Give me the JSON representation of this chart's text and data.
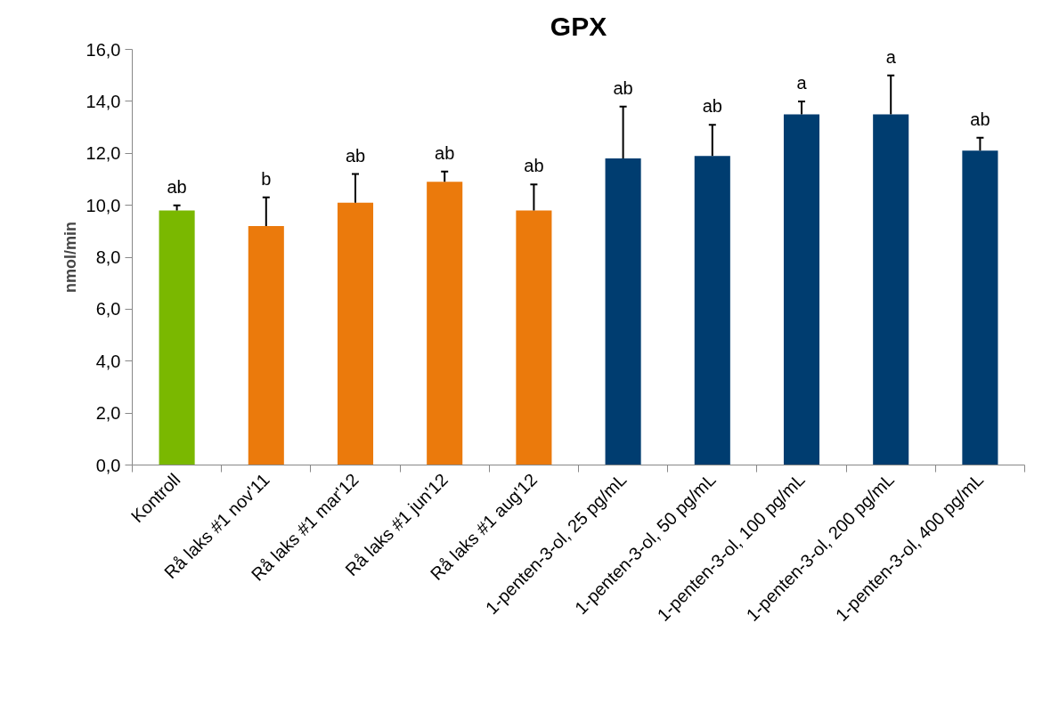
{
  "chart_data": {
    "type": "bar",
    "title": "GPX",
    "ylabel": "nmol/min",
    "categories": [
      "Kontroll",
      "Rå laks #1 nov'11",
      "Rå laks #1 mar'12",
      "Rå laks #1 jun'12",
      "Rå laks #1 aug'12",
      "1-penten-3-ol, 25 pg/mL",
      "1-penten-3-ol, 50 pg/mL",
      "1-penten-3-ol, 100 pg/mL",
      "1-penten-3-ol, 200 pg/mL",
      "1-penten-3-ol, 400 pg/mL"
    ],
    "values": [
      9.8,
      9.2,
      10.1,
      10.9,
      9.8,
      11.8,
      11.9,
      13.5,
      13.5,
      12.1
    ],
    "colors": [
      "#7ab800",
      "#eb7a0c",
      "#eb7a0c",
      "#eb7a0c",
      "#eb7a0c",
      "#003d70",
      "#003d70",
      "#003d70",
      "#003d70",
      "#003d70"
    ],
    "errors": [
      [
        9.8,
        10.0
      ],
      [
        9.2,
        10.3
      ],
      [
        10.1,
        11.2
      ],
      [
        10.9,
        11.3
      ],
      [
        9.8,
        10.8
      ],
      [
        11.8,
        13.8
      ],
      [
        11.9,
        13.1
      ],
      [
        13.5,
        14.0
      ],
      [
        13.5,
        15.0
      ],
      [
        12.1,
        12.6
      ]
    ],
    "ylim": [
      0,
      16
    ],
    "yticks": [
      {
        "value": 0,
        "label": "0,0"
      },
      {
        "value": 2,
        "label": "2,0"
      },
      {
        "value": 4,
        "label": "4,0"
      },
      {
        "value": 6,
        "label": "6,0"
      },
      {
        "value": 8,
        "label": "8,0"
      },
      {
        "value": 10,
        "label": "10,0"
      },
      {
        "value": 12,
        "label": "12,0"
      },
      {
        "value": 14,
        "label": "14,0"
      },
      {
        "value": 16,
        "label": "16,0"
      }
    ],
    "grid": false,
    "annotations": [
      "ab",
      "b",
      "ab",
      "ab",
      "ab",
      "ab",
      "ab",
      "a",
      "a",
      "ab"
    ]
  }
}
